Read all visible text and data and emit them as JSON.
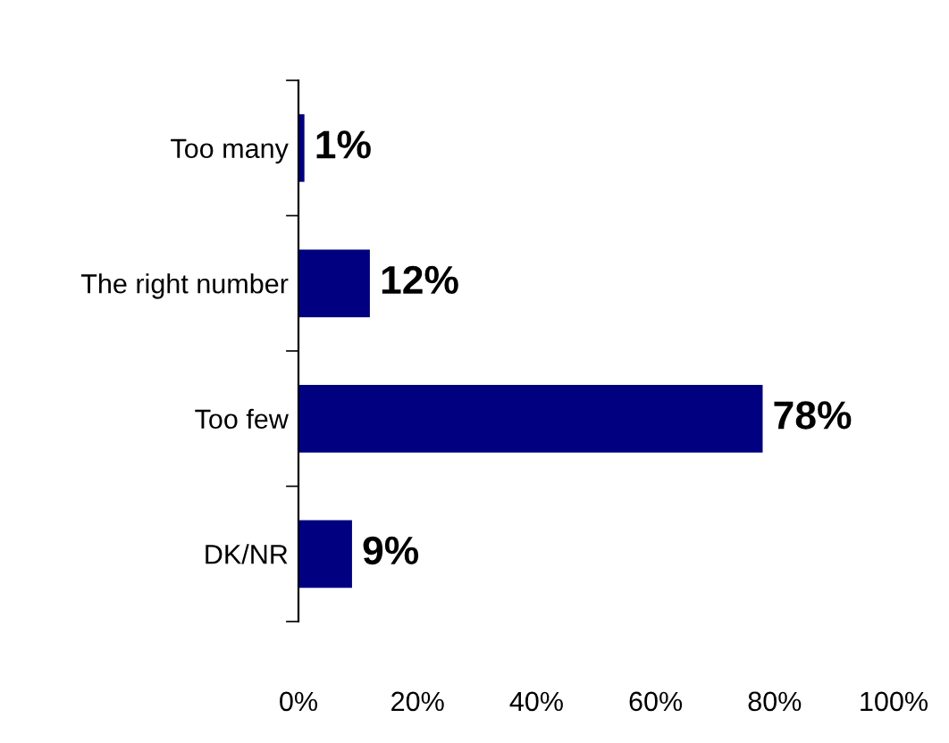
{
  "chart_data": {
    "type": "bar",
    "orientation": "horizontal",
    "categories": [
      "Too many",
      "The right number",
      "Too few",
      "DK/NR"
    ],
    "values": [
      1,
      12,
      78,
      9
    ],
    "color": "#000080",
    "value_labels": [
      "1%",
      "12%",
      "78%",
      "9%"
    ],
    "xlim": [
      0,
      100
    ],
    "xticks": [
      {
        "value": 0,
        "label": "0%"
      },
      {
        "value": 20,
        "label": "20%"
      },
      {
        "value": 40,
        "label": "40%"
      },
      {
        "value": 60,
        "label": "60%"
      },
      {
        "value": 80,
        "label": "80%"
      },
      {
        "value": 100,
        "label": "100%"
      }
    ],
    "grid": false,
    "legend": false
  }
}
